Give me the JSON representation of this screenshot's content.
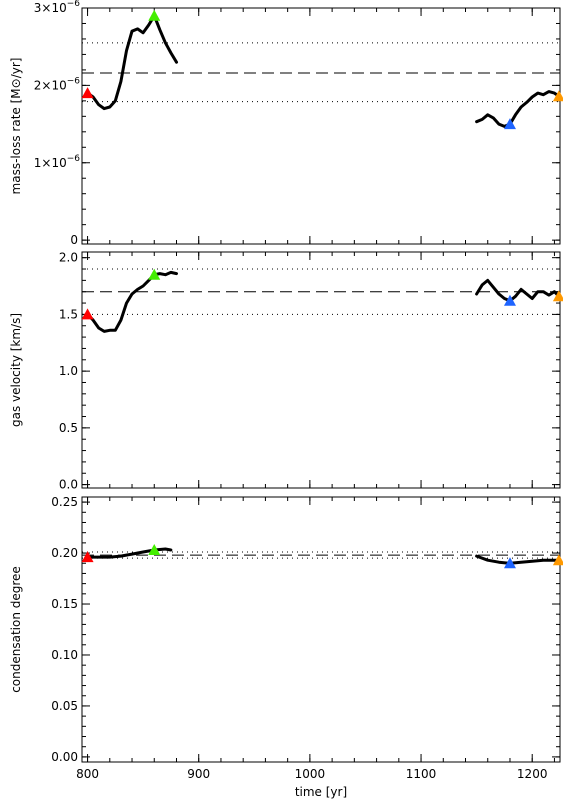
{
  "chart_data": [
    {
      "type": "line",
      "ylabel": "mass-loss rate [M⊙/yr]",
      "ylim": [
        -0.05,
        3.0
      ],
      "y_scale_exp": -6,
      "yticks": [
        0,
        1,
        2,
        3
      ],
      "yticklabels": [
        "0",
        "1×10",
        "2×10",
        "3×10"
      ],
      "yticksup": [
        "",
        "−6",
        "−6",
        "−6"
      ],
      "hlines": [
        {
          "y": 2.55,
          "style": "dotted"
        },
        {
          "y": 2.16,
          "style": "dashed"
        },
        {
          "y": 1.79,
          "style": "dotted"
        }
      ],
      "series": [
        {
          "x": [
            800,
            805,
            810,
            815,
            820,
            825,
            830,
            835,
            840,
            845,
            850,
            855,
            860,
            865,
            870,
            875,
            880
          ],
          "y": [
            1.9,
            1.85,
            1.75,
            1.7,
            1.72,
            1.8,
            2.05,
            2.45,
            2.7,
            2.73,
            2.68,
            2.78,
            2.9,
            2.72,
            2.55,
            2.42,
            2.3
          ]
        },
        {
          "x": [
            1150,
            1155,
            1160,
            1165,
            1170,
            1175,
            1180,
            1185,
            1190,
            1195,
            1200,
            1205,
            1210,
            1215,
            1220,
            1224
          ],
          "y": [
            1.53,
            1.56,
            1.62,
            1.58,
            1.5,
            1.47,
            1.5,
            1.62,
            1.72,
            1.78,
            1.85,
            1.9,
            1.88,
            1.92,
            1.9,
            1.86
          ]
        }
      ],
      "markers": [
        {
          "x": 800,
          "y": 1.9,
          "color": "#ff0000"
        },
        {
          "x": 860,
          "y": 2.9,
          "color": "#44ee00"
        },
        {
          "x": 1180,
          "y": 1.5,
          "color": "#1e64ff"
        },
        {
          "x": 1224,
          "y": 1.86,
          "color": "#ff9900"
        }
      ]
    },
    {
      "type": "line",
      "ylabel": "gas velocity [km/s]",
      "ylim": [
        -0.03,
        2.05
      ],
      "yticks": [
        0.0,
        0.5,
        1.0,
        1.5,
        2.0
      ],
      "yticklabels": [
        "0.0",
        "0.5",
        "1.0",
        "1.5",
        "2.0"
      ],
      "hlines": [
        {
          "y": 1.9,
          "style": "dotted"
        },
        {
          "y": 1.7,
          "style": "dashed"
        },
        {
          "y": 1.5,
          "style": "dotted"
        }
      ],
      "series": [
        {
          "x": [
            800,
            805,
            810,
            815,
            820,
            825,
            830,
            835,
            840,
            845,
            850,
            855,
            860,
            865,
            870,
            875,
            880
          ],
          "y": [
            1.5,
            1.45,
            1.38,
            1.35,
            1.36,
            1.36,
            1.45,
            1.6,
            1.68,
            1.72,
            1.75,
            1.8,
            1.85,
            1.86,
            1.85,
            1.87,
            1.86
          ]
        },
        {
          "x": [
            1150,
            1155,
            1160,
            1165,
            1170,
            1175,
            1180,
            1185,
            1190,
            1195,
            1200,
            1205,
            1210,
            1215,
            1220,
            1224
          ],
          "y": [
            1.68,
            1.76,
            1.8,
            1.74,
            1.68,
            1.64,
            1.62,
            1.66,
            1.72,
            1.68,
            1.64,
            1.7,
            1.7,
            1.67,
            1.7,
            1.66
          ]
        }
      ],
      "markers": [
        {
          "x": 800,
          "y": 1.5,
          "color": "#ff0000"
        },
        {
          "x": 860,
          "y": 1.85,
          "color": "#44ee00"
        },
        {
          "x": 1180,
          "y": 1.62,
          "color": "#1e64ff"
        },
        {
          "x": 1224,
          "y": 1.66,
          "color": "#ff9900"
        }
      ]
    },
    {
      "type": "line",
      "ylabel": "condensation degree",
      "xlabel": "time [yr]",
      "ylim": [
        -0.005,
        0.255
      ],
      "yticks": [
        0.0,
        0.05,
        0.1,
        0.15,
        0.2,
        0.25
      ],
      "yticklabels": [
        "0.00",
        "0.05",
        "0.10",
        "0.15",
        "0.20",
        "0.25"
      ],
      "xlim": [
        795,
        1225
      ],
      "xticks": [
        800,
        900,
        1000,
        1100,
        1200
      ],
      "xticklabels": [
        "800",
        "900",
        "1000",
        "1100",
        "1200"
      ],
      "hlines": [
        {
          "y": 0.201,
          "style": "dotted"
        },
        {
          "y": 0.198,
          "style": "dashed"
        },
        {
          "y": 0.195,
          "style": "dotted"
        }
      ],
      "series": [
        {
          "x": [
            800,
            810,
            820,
            830,
            840,
            850,
            860,
            870,
            875
          ],
          "y": [
            0.196,
            0.196,
            0.196,
            0.197,
            0.199,
            0.201,
            0.203,
            0.204,
            0.203
          ]
        },
        {
          "x": [
            1150,
            1160,
            1170,
            1180,
            1190,
            1200,
            1210,
            1224
          ],
          "y": [
            0.197,
            0.193,
            0.191,
            0.19,
            0.191,
            0.192,
            0.193,
            0.193
          ]
        }
      ],
      "markers": [
        {
          "x": 800,
          "y": 0.196,
          "color": "#ff0000"
        },
        {
          "x": 860,
          "y": 0.203,
          "color": "#44ee00"
        },
        {
          "x": 1180,
          "y": 0.19,
          "color": "#1e64ff"
        },
        {
          "x": 1224,
          "y": 0.193,
          "color": "#ff9900"
        }
      ]
    }
  ]
}
